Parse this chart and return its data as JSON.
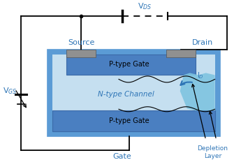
{
  "colors": {
    "outer_body": "#5b9bd5",
    "inner_channel": "#c5dff0",
    "p_gate": "#4a7fc1",
    "depletion_fill": "#7ec4e0",
    "contact_gray": "#909090",
    "wire": "#000000",
    "text_blue": "#2e75b6",
    "text_black": "#000000",
    "background": "#ffffff"
  },
  "labels": {
    "VDS": "V$_{DS}$",
    "VGS": "V$_{GS}$",
    "ID": "I$_D$",
    "Source": "Source",
    "Drain": "Drain",
    "Gate": "Gate",
    "PGateTop": "P-type Gate",
    "PGateBottom": "P-type Gate",
    "NChannel": "N-type Channel",
    "DepletionLayer": "Depletion\nLayer"
  }
}
